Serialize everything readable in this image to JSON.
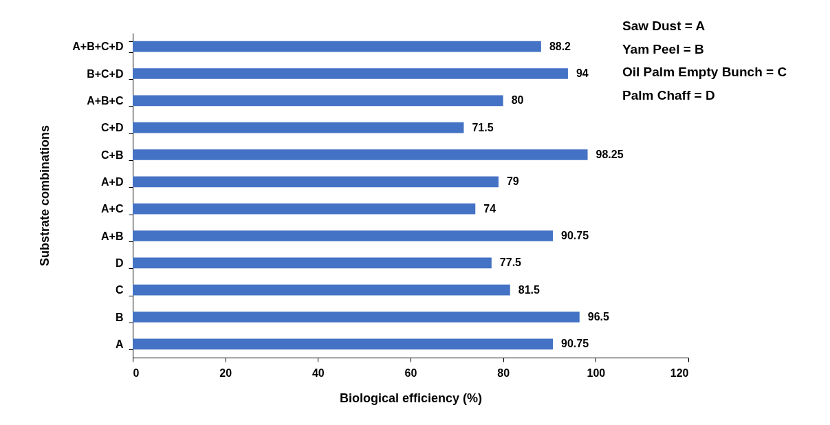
{
  "chart_data": {
    "type": "bar",
    "orientation": "horizontal",
    "xlabel": "Biological efficiency (%)",
    "ylabel": "Substrate combinations",
    "categories": [
      "A+B+C+D",
      "B+C+D",
      "A+B+C",
      "C+D",
      "C+B",
      "A+D",
      "A+C",
      "A+B",
      "D",
      "C",
      "B",
      "A"
    ],
    "values": [
      88.2,
      94,
      80,
      71.5,
      98.25,
      79,
      74,
      90.75,
      77.5,
      81.5,
      96.5,
      90.75
    ],
    "color": "#4472c4",
    "xlim": [
      0,
      120
    ],
    "xticks": [
      0,
      20,
      40,
      60,
      80,
      100,
      120
    ],
    "data_labels": true,
    "annotations": [
      "Saw Dust = A",
      "Yam Peel = B",
      "Oil Palm Empty Bunch = C",
      "Palm Chaff = D"
    ]
  }
}
